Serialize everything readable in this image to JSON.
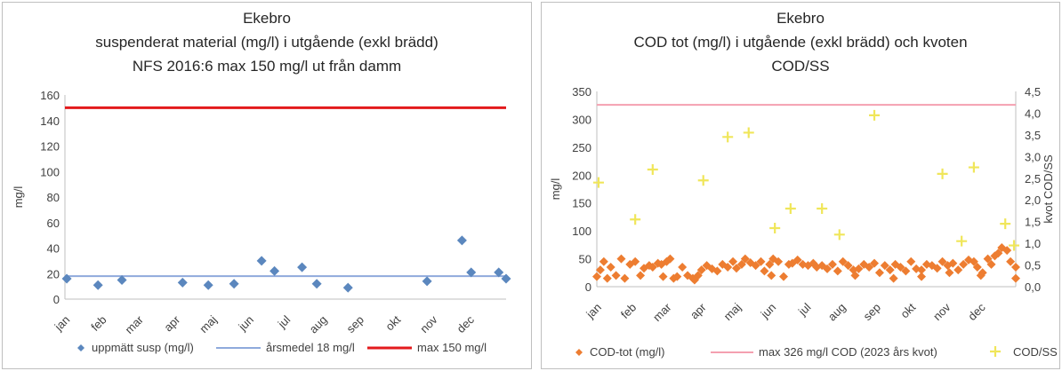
{
  "chart_data": [
    {
      "type": "scatter",
      "title_lines": [
        "Ekebro",
        "suspenderat material (mg/l) i utgående (exkl brädd)",
        "NFS 2016:6 max 150 mg/l ut från damm"
      ],
      "ylabel": "mg/l",
      "ylim": [
        0,
        160
      ],
      "yticks": [
        "0",
        "20",
        "40",
        "60",
        "80",
        "100",
        "120",
        "140",
        "160"
      ],
      "xlim": [
        0,
        12
      ],
      "months": [
        "jan",
        "feb",
        "mar",
        "apr",
        "maj",
        "jun",
        "jul",
        "aug",
        "sep",
        "okt",
        "nov",
        "dec"
      ],
      "series": [
        {
          "name": "uppmätt susp (mg/l)",
          "kind": "points",
          "color": "#5b87be",
          "x": [
            0.05,
            0.9,
            1.55,
            3.2,
            3.9,
            4.6,
            5.35,
            5.7,
            6.45,
            6.85,
            7.7,
            9.85,
            10.8,
            11.05,
            11.8,
            12.0
          ],
          "y": [
            16,
            11,
            15,
            13,
            11,
            12,
            30,
            22,
            25,
            12,
            9,
            14,
            46,
            21,
            21,
            16
          ]
        },
        {
          "name": "årsmedel 18 mg/l",
          "kind": "hline",
          "value": 18,
          "color": "#8faadc"
        },
        {
          "name": "max 150 mg/l",
          "kind": "hline",
          "value": 150,
          "color": "#e31a1c"
        }
      ],
      "legend": "bottom"
    },
    {
      "type": "scatter",
      "title_lines": [
        "Ekebro",
        "COD tot (mg/l) i utgående (exkl brädd) och kvoten",
        "COD/SS"
      ],
      "ylabel": "mg/l",
      "y2label": "kvot COD/SS",
      "ylim": [
        0,
        350
      ],
      "y2lim": [
        0,
        4.5
      ],
      "yticks": [
        "0",
        "50",
        "100",
        "150",
        "200",
        "250",
        "300",
        "350"
      ],
      "y2ticks": [
        "0,0",
        "0,5",
        "1,0",
        "1,5",
        "2,0",
        "2,5",
        "3,0",
        "3,5",
        "4,0",
        "4,5"
      ],
      "xlim": [
        0,
        12
      ],
      "months": [
        "jan",
        "feb",
        "mar",
        "apr",
        "maj",
        "jun",
        "jul",
        "aug",
        "sep",
        "okt",
        "nov",
        "dec"
      ],
      "series": [
        {
          "name": "COD-tot (mg/l)",
          "kind": "points",
          "axis": "left",
          "color": "#ed7d31",
          "x": [
            0.0,
            0.1,
            0.2,
            0.3,
            0.4,
            0.55,
            0.7,
            0.8,
            0.95,
            1.1,
            1.25,
            1.35,
            1.5,
            1.6,
            1.75,
            1.85,
            2.0,
            2.1,
            2.2,
            2.3,
            2.45,
            2.6,
            2.75,
            2.9,
            3.0,
            3.15,
            3.3,
            3.45,
            3.6,
            3.75,
            3.9,
            4.0,
            4.15,
            4.25,
            4.4,
            4.55,
            4.7,
            4.8,
            4.95,
            5.05,
            5.2,
            5.35,
            5.5,
            5.6,
            5.75,
            5.9,
            6.05,
            6.2,
            6.3,
            6.45,
            6.6,
            6.75,
            6.9,
            7.05,
            7.2,
            7.35,
            7.5,
            7.65,
            7.8,
            7.95,
            8.1,
            8.25,
            8.4,
            8.55,
            8.7,
            8.85,
            9.0,
            9.15,
            9.3,
            9.45,
            9.6,
            9.75,
            9.9,
            10.05,
            10.2,
            10.35,
            10.5,
            10.65,
            10.8,
            10.9,
            11.05,
            11.2,
            11.3,
            11.4,
            11.5,
            11.6,
            11.75,
            11.85,
            12.0
          ],
          "y": [
            18,
            30,
            45,
            15,
            35,
            20,
            50,
            15,
            40,
            45,
            20,
            33,
            38,
            35,
            42,
            40,
            45,
            50,
            15,
            18,
            35,
            20,
            15,
            20,
            30,
            38,
            32,
            28,
            40,
            35,
            45,
            33,
            40,
            50,
            43,
            38,
            45,
            28,
            40,
            50,
            45,
            18,
            40,
            42,
            48,
            40,
            38,
            42,
            35,
            38,
            32,
            40,
            28,
            45,
            38,
            30,
            32,
            40,
            35,
            42,
            25,
            38,
            30,
            40,
            35,
            28,
            45,
            32,
            30,
            40,
            38,
            33,
            45,
            38,
            42,
            30,
            40,
            48,
            45,
            35,
            25,
            50,
            40,
            55,
            60,
            70,
            65,
            45,
            35
          ],
          "extra_x": [
            1.9,
            2.8,
            5.0,
            7.4,
            8.5,
            9.3,
            10.1,
            11.0,
            12.0
          ],
          "extra_y": [
            18,
            12,
            20,
            20,
            15,
            18,
            25,
            20,
            15
          ]
        },
        {
          "name": "max 326 mg/l COD (2023 års kvot)",
          "kind": "hline",
          "axis": "left",
          "value": 326,
          "color": "#f4a0b0"
        },
        {
          "name": "COD/SS",
          "kind": "points",
          "axis": "right",
          "color": "#f0e65a",
          "x": [
            0.05,
            1.1,
            1.6,
            3.05,
            3.75,
            4.35,
            5.1,
            5.55,
            6.45,
            6.95,
            7.95,
            9.9,
            10.45,
            10.8,
            11.7,
            11.95
          ],
          "y": [
            2.4,
            1.55,
            2.7,
            2.45,
            3.45,
            3.55,
            1.35,
            1.8,
            1.8,
            1.2,
            3.95,
            2.6,
            1.05,
            2.75,
            1.45,
            0.95
          ]
        }
      ],
      "legend": "bottom"
    }
  ]
}
